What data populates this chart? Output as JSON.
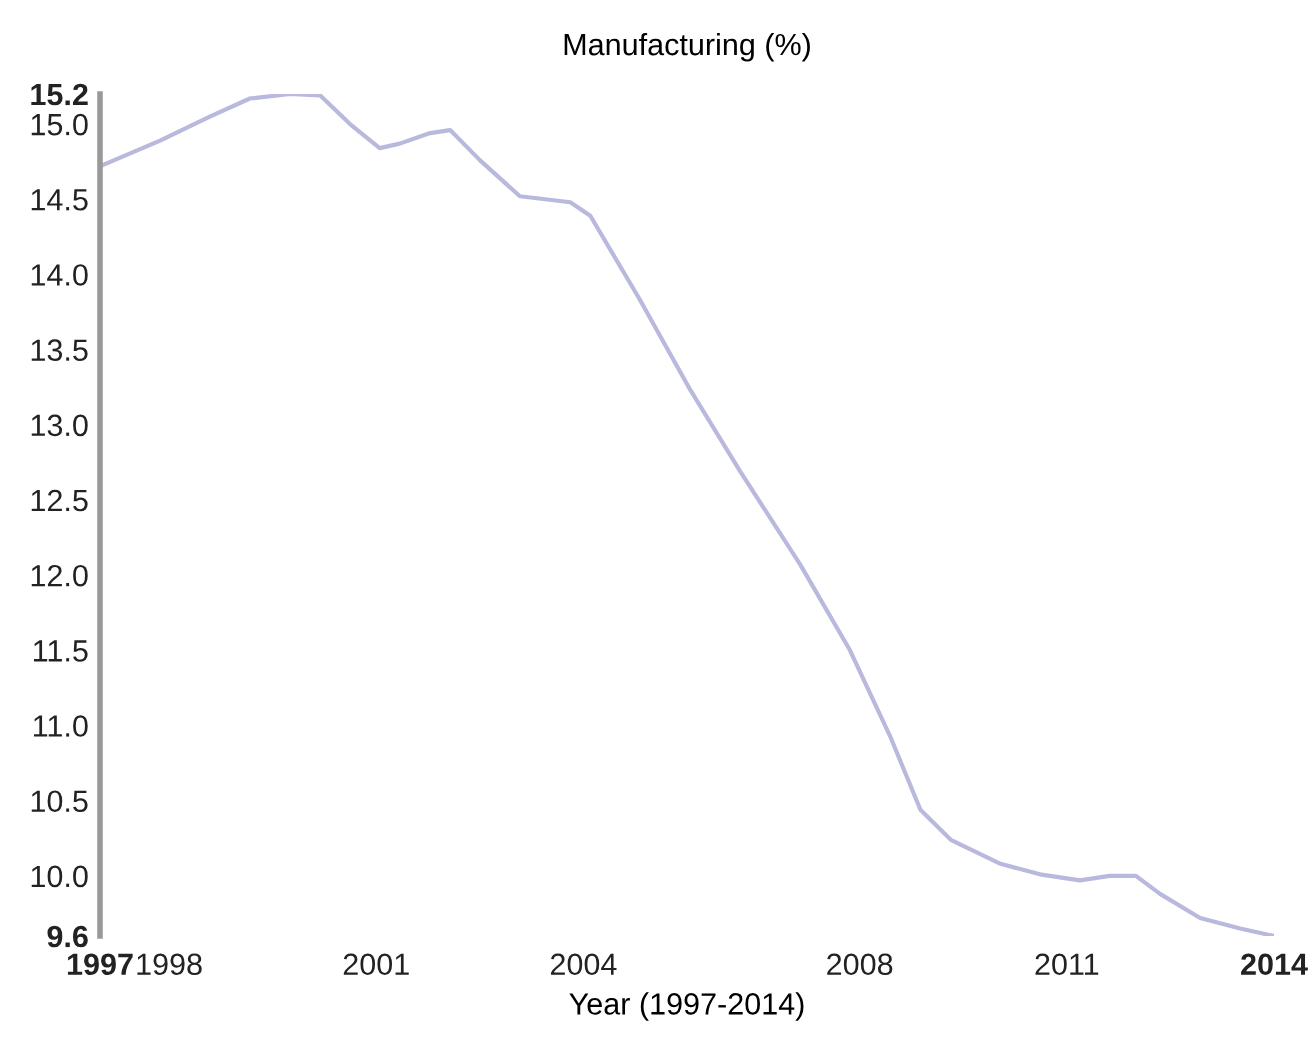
{
  "chart_data": {
    "type": "line",
    "title": "Manufacturing (%)",
    "xlabel": "Year (1997-2014)",
    "x": [
      1997,
      1997.87,
      1998.59,
      1999.17,
      1999.75,
      2000.19,
      2000.62,
      2001.05,
      2001.34,
      2001.78,
      2002.07,
      2002.5,
      2003.08,
      2003.81,
      2004.1,
      2004.82,
      2005.55,
      2006.27,
      2007.14,
      2007.86,
      2008.44,
      2008.88,
      2009.32,
      2010.04,
      2010.61,
      2011.19,
      2011.62,
      2012.0,
      2012.35,
      2012.93,
      2013.51,
      2014
    ],
    "series": [
      {
        "color": "#b9b8dd",
        "values": [
          14.72,
          14.89,
          15.05,
          15.17,
          15.2,
          15.19,
          15.0,
          14.84,
          14.87,
          14.94,
          14.96,
          14.76,
          14.52,
          14.48,
          14.39,
          13.83,
          13.23,
          12.69,
          12.07,
          11.5,
          10.93,
          10.44,
          10.24,
          10.08,
          10.01,
          9.97,
          10.0,
          10.0,
          9.88,
          9.72,
          9.65,
          9.6
        ]
      }
    ],
    "xlim": [
      1997,
      2014
    ],
    "xticks": [
      1997,
      1998,
      2001,
      2004,
      2008,
      2011,
      2014
    ],
    "ylim": [
      9.6,
      15.2
    ],
    "yticks": [
      9.6,
      {
        "value": 10.0,
        "label": "10.0"
      },
      {
        "value": 10.5,
        "label": "10.5"
      },
      {
        "value": 11.0,
        "label": "11.0"
      },
      {
        "value": 11.5,
        "label": "11.5"
      },
      {
        "value": 12.0,
        "label": "12.0"
      },
      {
        "value": 12.5,
        "label": "12.5"
      },
      {
        "value": 13.0,
        "label": "13.0"
      },
      {
        "value": 13.5,
        "label": "13.5"
      },
      {
        "value": 14.0,
        "label": "14.0"
      },
      {
        "value": 14.5,
        "label": "14.5"
      },
      {
        "value": 15.0,
        "label": "15.0"
      },
      15.2
    ],
    "grid": false,
    "legend": false,
    "marker": "none",
    "line_style": "solid"
  }
}
